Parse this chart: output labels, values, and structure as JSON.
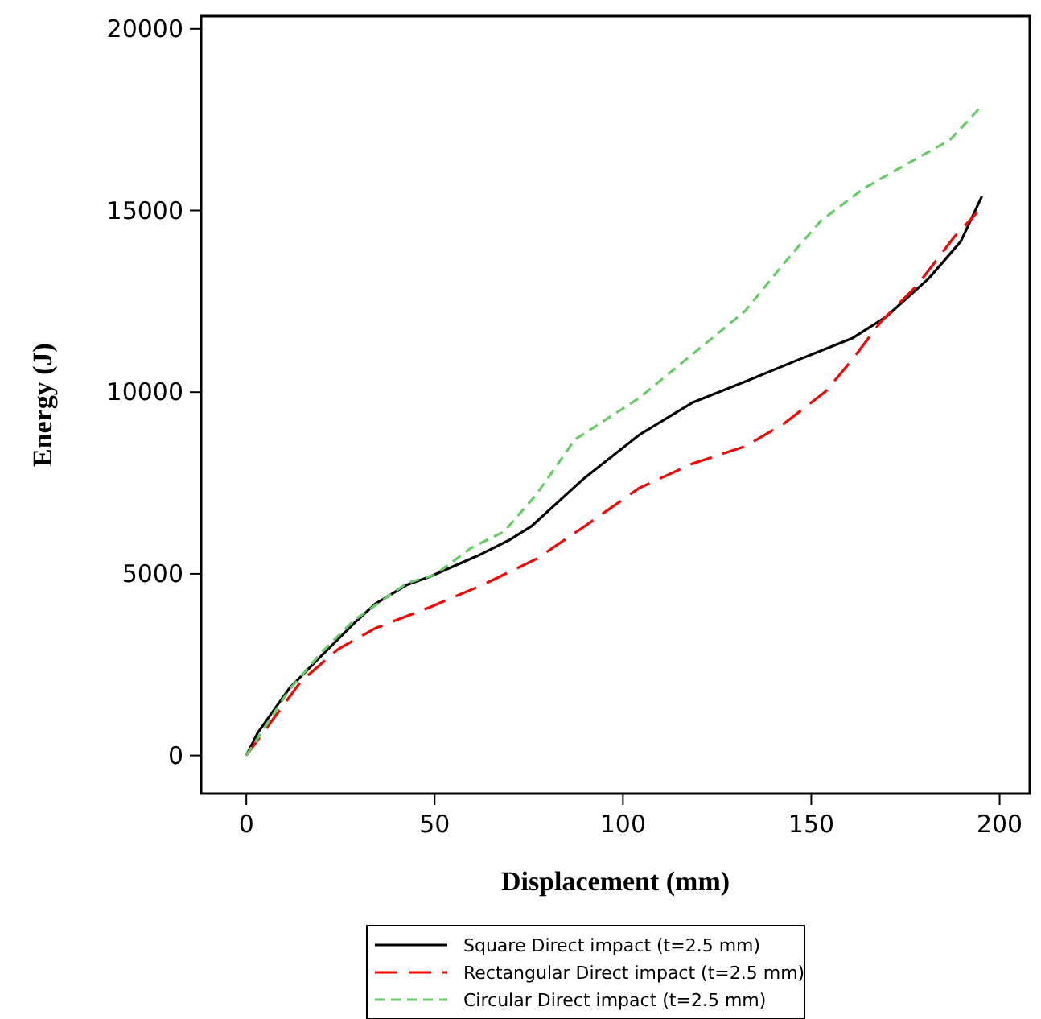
{
  "chart_data": {
    "type": "line",
    "xlabel": "Displacement (mm)",
    "ylabel": "Energy (J)",
    "xlim": [
      -12,
      208
    ],
    "ylim": [
      -1050,
      20350
    ],
    "xticks": [
      0,
      50,
      100,
      150,
      200
    ],
    "yticks": [
      0,
      5000,
      10000,
      15000,
      20000
    ],
    "grid": false,
    "legend": "bottom",
    "marker": "none",
    "series": [
      {
        "name": "Square Direct impact (t=2.5 mm)",
        "color": "#000000",
        "line_style": "solid",
        "x": [
          0,
          3,
          11.5,
          20,
          28.6,
          34.2,
          42.7,
          48.7,
          61.5,
          70,
          75.6,
          89.7,
          104.3,
          118.4,
          132.5,
          147,
          161,
          169.7,
          181.2,
          189.7,
          195.3
        ],
        "values": [
          0,
          620,
          1860,
          2750,
          3640,
          4170,
          4700,
          4920,
          5500,
          5940,
          6300,
          7630,
          8820,
          9710,
          10290,
          10910,
          11490,
          12060,
          13130,
          14150,
          15390
        ]
      },
      {
        "name": "Rectangular Direct impact (t=2.5 mm)",
        "color": "#ff0000",
        "line_style": "dashed",
        "x": [
          0,
          14.5,
          24.4,
          34.2,
          48.7,
          62.8,
          77,
          89.7,
          104.3,
          118.4,
          132.5,
          142.7,
          153.8,
          161,
          168.4,
          178.2,
          188,
          194
        ],
        "values": [
          0,
          2040,
          2930,
          3500,
          4080,
          4700,
          5410,
          6300,
          7360,
          8030,
          8510,
          9130,
          10020,
          10910,
          11930,
          12950,
          14280,
          14940
        ]
      },
      {
        "name": "Circular Direct impact (t=2.5 mm)",
        "color": "#66cc66",
        "line_style": "dotted",
        "x": [
          0,
          11.5,
          20,
          28.6,
          42.7,
          50,
          59.8,
          68.4,
          77,
          87.2,
          104.3,
          118.4,
          132.5,
          144,
          152.6,
          164,
          175.2,
          186.8,
          194.4
        ],
        "values": [
          0,
          1820,
          2840,
          3720,
          4750,
          4970,
          5720,
          6160,
          7180,
          8690,
          9840,
          11040,
          12240,
          13700,
          14720,
          15610,
          16270,
          16940,
          17780
        ]
      }
    ]
  }
}
